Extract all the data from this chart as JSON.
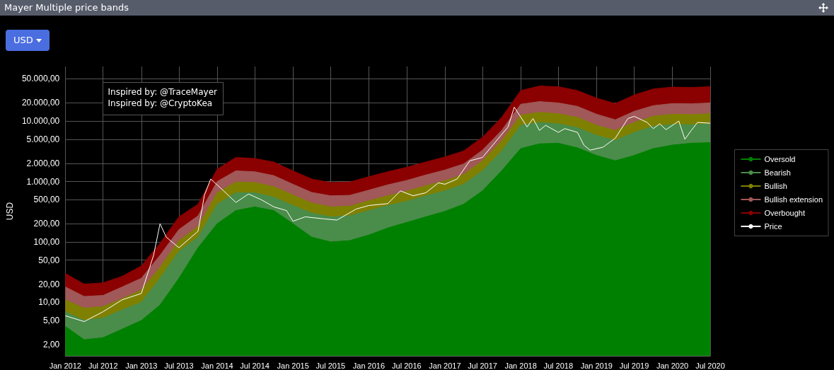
{
  "chart_data": {
    "type": "area",
    "title": "Mayer Multiple price bands",
    "ylabel": "USD",
    "annotations": [
      "USD",
      "Inspired by: @TraceMayer",
      "Inspired by: @CryptoKea"
    ],
    "x": [
      "2012-01",
      "2012-04",
      "2012-07",
      "2012-10",
      "2013-01",
      "2013-04",
      "2013-07",
      "2013-10",
      "2014-01",
      "2014-04",
      "2014-07",
      "2014-10",
      "2015-01",
      "2015-04",
      "2015-07",
      "2015-10",
      "2016-01",
      "2016-04",
      "2016-07",
      "2016-10",
      "2017-01",
      "2017-04",
      "2017-07",
      "2017-10",
      "2018-01",
      "2018-04",
      "2018-07",
      "2018-10",
      "2019-01",
      "2019-04",
      "2019-07",
      "2019-10",
      "2020-01",
      "2020-04",
      "2020-07"
    ],
    "series": [
      {
        "name": "Oversold",
        "color": "#008000",
        "values": [
          4,
          2.4,
          2.6,
          3.6,
          5,
          9,
          25,
          80,
          200,
          330,
          380,
          330,
          200,
          120,
          100,
          105,
          130,
          170,
          210,
          260,
          320,
          420,
          700,
          1500,
          3500,
          4200,
          4300,
          3600,
          2700,
          2200,
          2700,
          3500,
          4000,
          4300,
          4400
        ]
      },
      {
        "name": "Bearish",
        "color": "#4a8c4a",
        "values": [
          7,
          5,
          5.5,
          7.5,
          10,
          25,
          70,
          120,
          420,
          650,
          650,
          550,
          400,
          300,
          260,
          270,
          330,
          400,
          470,
          580,
          700,
          900,
          1500,
          3200,
          8500,
          9500,
          9000,
          7800,
          5800,
          4800,
          6500,
          8200,
          8800,
          8700,
          9000
        ]
      },
      {
        "name": "Bullish",
        "color": "#808000",
        "values": [
          11,
          8,
          8.5,
          11.5,
          16,
          38,
          105,
          180,
          650,
          980,
          960,
          820,
          600,
          440,
          380,
          390,
          480,
          580,
          690,
          850,
          1030,
          1300,
          2200,
          4700,
          12500,
          14000,
          13200,
          11500,
          8500,
          7000,
          9500,
          12000,
          13000,
          12800,
          13300
        ]
      },
      {
        "name": "Bullish extension",
        "color": "#a05858",
        "values": [
          18,
          12.5,
          13,
          18,
          25,
          60,
          160,
          270,
          1000,
          1500,
          1450,
          1250,
          900,
          660,
          580,
          590,
          720,
          880,
          1040,
          1280,
          1550,
          1950,
          3300,
          7000,
          19000,
          21000,
          20000,
          17500,
          13000,
          10500,
          14500,
          18000,
          19500,
          19300,
          20000
        ]
      },
      {
        "name": "Overbought",
        "color": "#8b0000",
        "values": [
          30,
          20,
          21,
          27,
          40,
          95,
          260,
          420,
          1600,
          2500,
          2400,
          2100,
          1500,
          1100,
          960,
          980,
          1200,
          1450,
          1720,
          2100,
          2550,
          3200,
          5400,
          11500,
          32000,
          38000,
          37000,
          32000,
          24000,
          19500,
          27000,
          34000,
          36500,
          36000,
          37000
        ]
      },
      {
        "name": "Price",
        "type": "line",
        "color": "#ffffff",
        "x": [
          "2012-01",
          "2012-04",
          "2012-07",
          "2012-10",
          "2013-01",
          "2013-03",
          "2013-04",
          "2013-05",
          "2013-07",
          "2013-10",
          "2013-11",
          "2013-12",
          "2014-02",
          "2014-04",
          "2014-06",
          "2014-08",
          "2014-10",
          "2014-12",
          "2015-01",
          "2015-03",
          "2015-06",
          "2015-08",
          "2015-11",
          "2016-01",
          "2016-04",
          "2016-06",
          "2016-08",
          "2016-10",
          "2016-12",
          "2017-01",
          "2017-03",
          "2017-05",
          "2017-07",
          "2017-09",
          "2017-11",
          "2017-12",
          "2018-02",
          "2018-03",
          "2018-04",
          "2018-05",
          "2018-07",
          "2018-08",
          "2018-10",
          "2018-11",
          "2018-12",
          "2019-02",
          "2019-04",
          "2019-06",
          "2019-07",
          "2019-09",
          "2019-10",
          "2019-11",
          "2019-12",
          "2020-02",
          "2020-03",
          "2020-04",
          "2020-05",
          "2020-07"
        ],
        "values": [
          6,
          4.8,
          7,
          11,
          14,
          60,
          200,
          120,
          80,
          150,
          600,
          1100,
          700,
          450,
          620,
          500,
          380,
          330,
          220,
          260,
          240,
          230,
          350,
          400,
          430,
          700,
          580,
          650,
          950,
          900,
          1100,
          2200,
          2500,
          4500,
          8000,
          17000,
          8000,
          11000,
          7000,
          8500,
          6500,
          7500,
          6500,
          4000,
          3300,
          3700,
          5200,
          11000,
          12000,
          9500,
          7500,
          9000,
          7200,
          10000,
          5000,
          7000,
          9500,
          9200
        ]
      }
    ],
    "xlim": [
      "2012-01",
      "2020-07"
    ],
    "xticks": [
      {
        "value": "2012-01",
        "label": "Jan 2012"
      },
      {
        "value": "2012-07",
        "label": "Jul 2012"
      },
      {
        "value": "2013-01",
        "label": "Jan 2013"
      },
      {
        "value": "2013-07",
        "label": "Jul 2013"
      },
      {
        "value": "2014-01",
        "label": "Jan 2014"
      },
      {
        "value": "2014-07",
        "label": "Jul 2014"
      },
      {
        "value": "2015-01",
        "label": "Jan 2015"
      },
      {
        "value": "2015-07",
        "label": "Jul 2015"
      },
      {
        "value": "2016-01",
        "label": "Jan 2016"
      },
      {
        "value": "2016-07",
        "label": "Jul 2016"
      },
      {
        "value": "2017-01",
        "label": "Jan 2017"
      },
      {
        "value": "2017-07",
        "label": "Jul 2017"
      },
      {
        "value": "2018-01",
        "label": "Jan 2018"
      },
      {
        "value": "2018-07",
        "label": "Jul 2018"
      },
      {
        "value": "2019-01",
        "label": "Jan 2019"
      },
      {
        "value": "2019-07",
        "label": "Jul 2019"
      },
      {
        "value": "2020-01",
        "label": "Jan 2020"
      },
      {
        "value": "2020-07",
        "label": "Jul 2020"
      }
    ],
    "ylim": [
      1.3,
      80000
    ],
    "log": true,
    "yticks": [
      {
        "value": 2,
        "label": "2,00"
      },
      {
        "value": 5,
        "label": "5,00"
      },
      {
        "value": 10,
        "label": "10,00"
      },
      {
        "value": 20,
        "label": "20,00"
      },
      {
        "value": 50,
        "label": "50,00"
      },
      {
        "value": 100,
        "label": "100,00"
      },
      {
        "value": 200,
        "label": "200,00"
      },
      {
        "value": 500,
        "label": "500,00"
      },
      {
        "value": 1000,
        "label": "1.000,00"
      },
      {
        "value": 2000,
        "label": "2.000,00"
      },
      {
        "value": 5000,
        "label": "5.000,00"
      },
      {
        "value": 10000,
        "label": "10.000,00"
      },
      {
        "value": 20000,
        "label": "20.000,00"
      },
      {
        "value": 50000,
        "label": "50.000,00"
      }
    ],
    "grid": true,
    "legend": "right"
  }
}
